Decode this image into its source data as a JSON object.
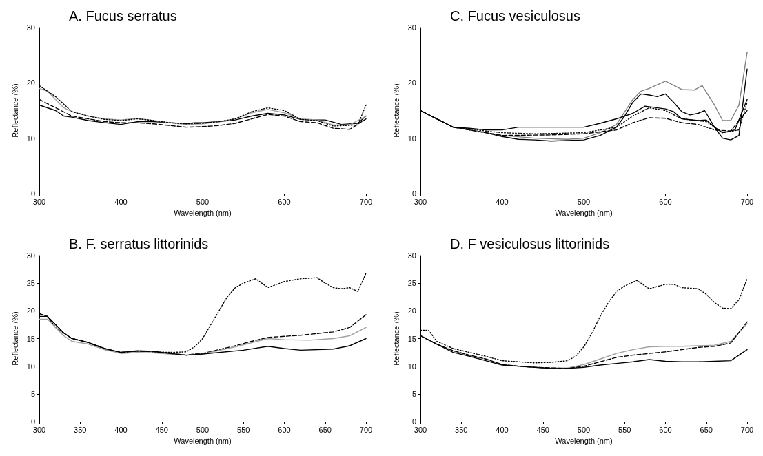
{
  "chart_data": [
    {
      "type": "line",
      "title": "A. Fucus serratus",
      "xlabel": "Wavelength (nm)",
      "ylabel": "Reflectance (%)",
      "xlim": [
        300,
        700
      ],
      "xticks": [
        300,
        400,
        500,
        600,
        700
      ],
      "ylim": [
        0,
        30
      ],
      "yticks": [
        0,
        10,
        20,
        30
      ],
      "grid": false,
      "marker": "none",
      "series": [
        {
          "color": "#000000",
          "line_style": "solid",
          "x": [
            300,
            310,
            320,
            330,
            340,
            350,
            360,
            380,
            400,
            420,
            440,
            460,
            480,
            490,
            500,
            520,
            540,
            560,
            580,
            600,
            620,
            640,
            650,
            670,
            690,
            700
          ],
          "values": [
            16,
            15.5,
            15,
            14,
            13.8,
            13.5,
            13.2,
            12.8,
            12.5,
            13,
            13,
            12.8,
            12.6,
            12.8,
            12.8,
            13,
            13.3,
            14,
            14.5,
            14.2,
            13.4,
            13.3,
            13.3,
            12.5,
            12.7,
            14
          ]
        },
        {
          "color": "#a0a0a0",
          "line_style": "solid",
          "x": [
            300,
            310,
            320,
            330,
            340,
            360,
            380,
            400,
            420,
            440,
            460,
            480,
            500,
            520,
            540,
            560,
            580,
            600,
            620,
            640,
            660,
            680,
            700
          ],
          "values": [
            19,
            18.5,
            17,
            15.5,
            14.8,
            14,
            13.5,
            13.3,
            13.6,
            13.2,
            12.8,
            12.5,
            12.6,
            13,
            13.5,
            14.6,
            15.2,
            14.6,
            13.5,
            13.3,
            12.4,
            12.4,
            14
          ]
        },
        {
          "color": "#000000",
          "line_style": "dotted",
          "x": [
            300,
            320,
            340,
            360,
            380,
            400,
            420,
            440,
            460,
            480,
            500,
            520,
            540,
            560,
            580,
            600,
            620,
            640,
            660,
            690,
            700
          ],
          "values": [
            19.5,
            17.5,
            14.8,
            14,
            13.4,
            13.2,
            13.5,
            13.2,
            12.8,
            12.6,
            12.7,
            13,
            13.5,
            14.8,
            15.5,
            15,
            13.4,
            13.2,
            12.2,
            12.4,
            16
          ]
        },
        {
          "color": "#000000",
          "line_style": "dashed",
          "x": [
            300,
            320,
            340,
            360,
            380,
            400,
            420,
            440,
            460,
            480,
            500,
            520,
            540,
            560,
            580,
            600,
            620,
            640,
            660,
            680,
            700
          ],
          "values": [
            17,
            15.5,
            14,
            13.5,
            13,
            12.8,
            12.8,
            12.6,
            12.3,
            12,
            12.1,
            12.3,
            12.7,
            13.5,
            14.3,
            14,
            13,
            12.8,
            11.8,
            11.6,
            13.5
          ]
        }
      ]
    },
    {
      "type": "line",
      "title": "C. Fucus vesiculosus",
      "xlabel": "Wavelength (nm)",
      "ylabel": "Reflectance (%)",
      "xlim": [
        300,
        700
      ],
      "xticks": [
        300,
        400,
        500,
        600,
        700
      ],
      "ylim": [
        0,
        30
      ],
      "yticks": [
        0,
        10,
        20,
        30
      ],
      "grid": false,
      "marker": "none",
      "series": [
        {
          "color": "#000000",
          "line_style": "solid",
          "x": [
            300,
            320,
            340,
            360,
            380,
            400,
            420,
            440,
            460,
            480,
            500,
            520,
            540,
            550,
            560,
            570,
            580,
            590,
            600,
            610,
            620,
            630,
            640,
            648,
            660,
            670,
            680,
            690,
            700
          ],
          "values": [
            15,
            13.5,
            12,
            11.5,
            11,
            10.3,
            9.8,
            9.7,
            9.5,
            9.6,
            9.7,
            10.5,
            12,
            14,
            16.5,
            18,
            17.8,
            17.5,
            18,
            16.5,
            14.8,
            14.2,
            14.5,
            15,
            12,
            10,
            9.7,
            10.5,
            22.5
          ]
        },
        {
          "color": "#808080",
          "line_style": "solid",
          "x": [
            300,
            320,
            340,
            360,
            380,
            400,
            440,
            480,
            500,
            520,
            540,
            560,
            570,
            580,
            600,
            620,
            635,
            645,
            660,
            670,
            680,
            690,
            700
          ],
          "values": [
            15,
            13.5,
            12,
            11.5,
            11,
            10.5,
            10,
            9.8,
            10,
            11,
            12.5,
            17,
            18.5,
            19,
            20.3,
            18.8,
            18.7,
            19.5,
            16,
            13.2,
            13.2,
            16,
            25.5
          ]
        },
        {
          "color": "#000000",
          "line_style": "solid",
          "x": [
            300,
            320,
            340,
            360,
            380,
            400,
            420,
            460,
            500,
            520,
            540,
            560,
            575,
            600,
            610,
            620,
            640,
            650,
            660,
            670,
            685,
            700
          ],
          "values": [
            15,
            13.5,
            12,
            11.8,
            11.5,
            11.5,
            12,
            12,
            12,
            12.7,
            13.5,
            14.5,
            15.8,
            15.3,
            14.8,
            13.5,
            13.2,
            13.3,
            12,
            11,
            11.5,
            17
          ]
        },
        {
          "color": "#000000",
          "line_style": "dotted",
          "x": [
            300,
            320,
            340,
            360,
            380,
            400,
            440,
            500,
            540,
            560,
            580,
            600,
            620,
            650,
            670,
            690,
            700
          ],
          "values": [
            15,
            13.5,
            12,
            11.7,
            11.3,
            11,
            10.8,
            11,
            12,
            14,
            15.5,
            15,
            13.5,
            13,
            11,
            11.5,
            16.5
          ]
        },
        {
          "color": "#000000",
          "line_style": "dashed",
          "x": [
            300,
            320,
            340,
            360,
            380,
            400,
            460,
            500,
            540,
            560,
            580,
            600,
            620,
            640,
            660,
            680,
            700
          ],
          "values": [
            15,
            13.5,
            12,
            11.5,
            11,
            10.5,
            10.6,
            10.8,
            11.5,
            12.8,
            13.7,
            13.6,
            12.8,
            12.5,
            11.5,
            11.3,
            15
          ]
        }
      ]
    },
    {
      "type": "line",
      "title": "B. F. serratus littorinids",
      "xlabel": "Wavelength (nm)",
      "ylabel": "Reflectance (%)",
      "xlim": [
        300,
        700
      ],
      "xticks": [
        300,
        350,
        400,
        450,
        500,
        550,
        600,
        650,
        700
      ],
      "ylim": [
        0,
        30
      ],
      "yticks": [
        0,
        5,
        10,
        15,
        20,
        25,
        30
      ],
      "grid": false,
      "marker": "none",
      "series": [
        {
          "color": "#000000",
          "line_style": "dotted",
          "x": [
            300,
            310,
            320,
            330,
            340,
            360,
            380,
            400,
            420,
            440,
            460,
            480,
            490,
            500,
            510,
            520,
            530,
            540,
            550,
            565,
            580,
            600,
            620,
            640,
            650,
            660,
            670,
            680,
            690,
            700
          ],
          "values": [
            19.5,
            19,
            17,
            16,
            15,
            14.3,
            13,
            12.5,
            12.7,
            12.6,
            12.5,
            12.6,
            13.5,
            15,
            17.5,
            20,
            22.5,
            24.2,
            25,
            25.8,
            24.2,
            25.3,
            25.8,
            26,
            25,
            24.2,
            24,
            24.2,
            23.5,
            26.8
          ]
        },
        {
          "color": "#000000",
          "line_style": "dashed",
          "x": [
            300,
            310,
            320,
            330,
            340,
            360,
            380,
            400,
            420,
            440,
            460,
            480,
            490,
            500,
            520,
            540,
            560,
            580,
            600,
            620,
            640,
            660,
            680,
            700
          ],
          "values": [
            19.5,
            19,
            17.5,
            16,
            15,
            14.3,
            13.2,
            12.5,
            12.7,
            12.6,
            12.3,
            12,
            12.2,
            12.3,
            13,
            13.7,
            14.5,
            15.2,
            15.4,
            15.6,
            15.9,
            16.2,
            17,
            19.3
          ]
        },
        {
          "color": "#a0a0a0",
          "line_style": "solid",
          "x": [
            300,
            310,
            320,
            330,
            340,
            360,
            380,
            400,
            420,
            440,
            460,
            480,
            500,
            540,
            580,
            600,
            630,
            660,
            680,
            700
          ],
          "values": [
            18.5,
            18.5,
            17,
            15.5,
            14.5,
            14,
            13,
            12.3,
            12.5,
            12.4,
            12.2,
            12,
            12.2,
            13.5,
            15,
            14.8,
            14.7,
            15,
            15.5,
            17
          ]
        },
        {
          "color": "#000000",
          "line_style": "solid",
          "x": [
            300,
            310,
            320,
            330,
            340,
            360,
            380,
            400,
            420,
            440,
            460,
            480,
            500,
            550,
            580,
            600,
            620,
            660,
            680,
            700
          ],
          "values": [
            19,
            19,
            17.5,
            16,
            15,
            14.3,
            13.2,
            12.5,
            12.8,
            12.7,
            12.3,
            12,
            12.2,
            12.9,
            13.6,
            13.2,
            12.9,
            13.1,
            13.7,
            15
          ]
        }
      ]
    },
    {
      "type": "line",
      "title": "D. F vesiculosus littorinids",
      "xlabel": "Wavelength (nm)",
      "ylabel": "Reflectance (%)",
      "xlim": [
        300,
        700
      ],
      "xticks": [
        300,
        350,
        400,
        450,
        500,
        550,
        600,
        650,
        700
      ],
      "ylim": [
        0,
        30
      ],
      "yticks": [
        0,
        5,
        10,
        15,
        20,
        25,
        30
      ],
      "grid": false,
      "marker": "none",
      "series": [
        {
          "color": "#000000",
          "line_style": "dotted",
          "x": [
            300,
            310,
            320,
            340,
            360,
            380,
            400,
            420,
            440,
            460,
            480,
            490,
            500,
            510,
            520,
            530,
            540,
            550,
            565,
            580,
            600,
            610,
            620,
            640,
            650,
            660,
            670,
            680,
            690,
            700
          ],
          "values": [
            16.5,
            16.5,
            14.5,
            13.2,
            12.5,
            11.8,
            11,
            10.8,
            10.6,
            10.7,
            11,
            11.8,
            13.5,
            16,
            19,
            21.5,
            23.5,
            24.5,
            25.5,
            24,
            24.8,
            24.8,
            24.2,
            24,
            23,
            21.5,
            20.5,
            20.4,
            22,
            25.8
          ]
        },
        {
          "color": "#a0a0a0",
          "line_style": "solid",
          "x": [
            300,
            320,
            340,
            360,
            380,
            400,
            420,
            440,
            460,
            480,
            500,
            520,
            540,
            560,
            580,
            600,
            620,
            640,
            660,
            680,
            700
          ],
          "values": [
            15.5,
            14,
            12.8,
            12,
            11.3,
            10.3,
            10,
            9.8,
            9.7,
            9.7,
            10.3,
            11.3,
            12.3,
            13,
            13.5,
            13.6,
            13.6,
            13.7,
            13.8,
            14.5,
            17.7
          ]
        },
        {
          "color": "#000000",
          "line_style": "dashed",
          "x": [
            300,
            320,
            340,
            360,
            380,
            400,
            420,
            440,
            460,
            480,
            500,
            520,
            540,
            560,
            580,
            600,
            620,
            640,
            660,
            680,
            700
          ],
          "values": [
            15.5,
            14,
            12.8,
            12,
            11.3,
            10.3,
            10,
            9.8,
            9.7,
            9.6,
            10,
            10.8,
            11.6,
            12,
            12.3,
            12.6,
            13,
            13.4,
            13.6,
            14.2,
            18
          ]
        },
        {
          "color": "#000000",
          "line_style": "solid",
          "x": [
            300,
            320,
            340,
            360,
            380,
            400,
            420,
            440,
            460,
            480,
            500,
            520,
            540,
            560,
            580,
            600,
            620,
            640,
            660,
            680,
            700
          ],
          "values": [
            15.5,
            14,
            12.5,
            11.8,
            11,
            10.2,
            10,
            9.8,
            9.6,
            9.6,
            9.8,
            10.2,
            10.5,
            10.8,
            11.2,
            10.9,
            10.8,
            10.8,
            10.9,
            11,
            13
          ]
        }
      ]
    }
  ]
}
